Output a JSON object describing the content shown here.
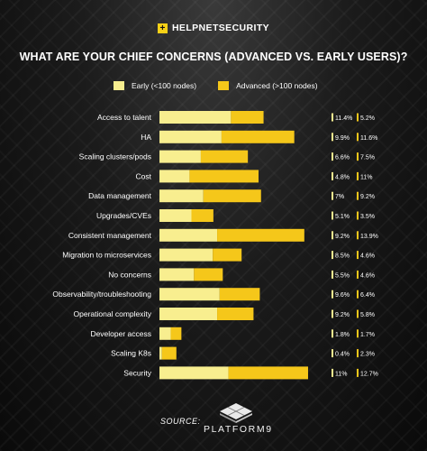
{
  "brand": {
    "name": "HELPNETSECURITY",
    "mark": "+"
  },
  "colors": {
    "early": "#f8ee8f",
    "advanced": "#f5c71a",
    "text": "#ffffff"
  },
  "chart_data": {
    "type": "bar",
    "stacked": true,
    "orientation": "horizontal",
    "title": "WHAT ARE YOUR CHIEF CONCERNS (ADVANCED VS. EARLY USERS)?",
    "legend_position": "top",
    "grid": false,
    "xlim": [
      0,
      26
    ],
    "categories": [
      "Access to talent",
      "HA",
      "Scaling clusters/pods",
      "Cost",
      "Data management",
      "Upgrades/CVEs",
      "Consistent management",
      "Migration to microservices",
      "No concerns",
      "Observability/troubleshooting",
      "Operational complexity",
      "Developer access",
      "Scaling K8s",
      "Security"
    ],
    "series": [
      {
        "name": "Early (<100 nodes)",
        "values": [
          11.4,
          9.9,
          6.6,
          4.8,
          7,
          5.1,
          9.2,
          8.5,
          5.5,
          9.6,
          9.2,
          1.8,
          0.4,
          11
        ],
        "labels": [
          "11.4%",
          "9.9%",
          "6.6%",
          "4.8%",
          "7%",
          "5.1%",
          "9.2%",
          "8.5%",
          "5.5%",
          "9.6%",
          "9.2%",
          "1.8%",
          "0.4%",
          "11%"
        ]
      },
      {
        "name": "Advanced (>100 nodes)",
        "values": [
          5.2,
          11.6,
          7.5,
          11,
          9.2,
          3.5,
          13.9,
          4.6,
          4.6,
          6.4,
          5.8,
          1.7,
          2.3,
          12.7
        ],
        "labels": [
          "5.2%",
          "11.6%",
          "7.5%",
          "11%",
          "9.2%",
          "3.5%",
          "13.9%",
          "4.6%",
          "4.6%",
          "6.4%",
          "5.8%",
          "1.7%",
          "2.3%",
          "12.7%"
        ]
      }
    ]
  },
  "source": {
    "label": "SOURCE:",
    "company": "PLATFORM9"
  }
}
